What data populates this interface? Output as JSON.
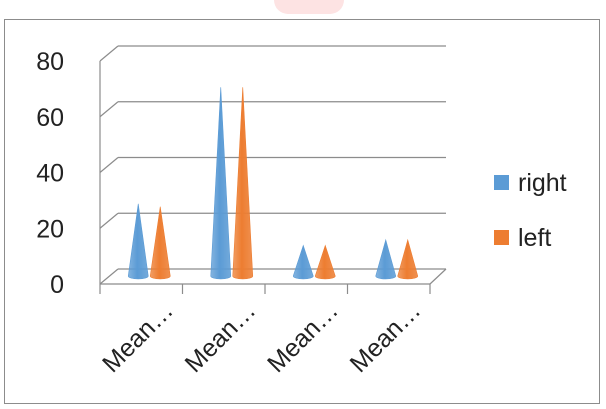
{
  "chart_data": {
    "type": "bar",
    "shape": "3d-cone",
    "categories": [
      "Mean…",
      "Mean…",
      "Mean…",
      "Mean…"
    ],
    "series": [
      {
        "name": "right",
        "values": [
          26,
          68,
          11,
          13
        ],
        "color": "#5b9bd5"
      },
      {
        "name": "left",
        "values": [
          25,
          68,
          11,
          13
        ],
        "color": "#ed7d31"
      }
    ],
    "ylim": [
      0,
      80
    ],
    "yticks": [
      0,
      20,
      40,
      60,
      80
    ],
    "grid": true,
    "legend_position": "right"
  },
  "colors": {
    "right": "#5b9bd5",
    "left": "#ed7d31"
  }
}
